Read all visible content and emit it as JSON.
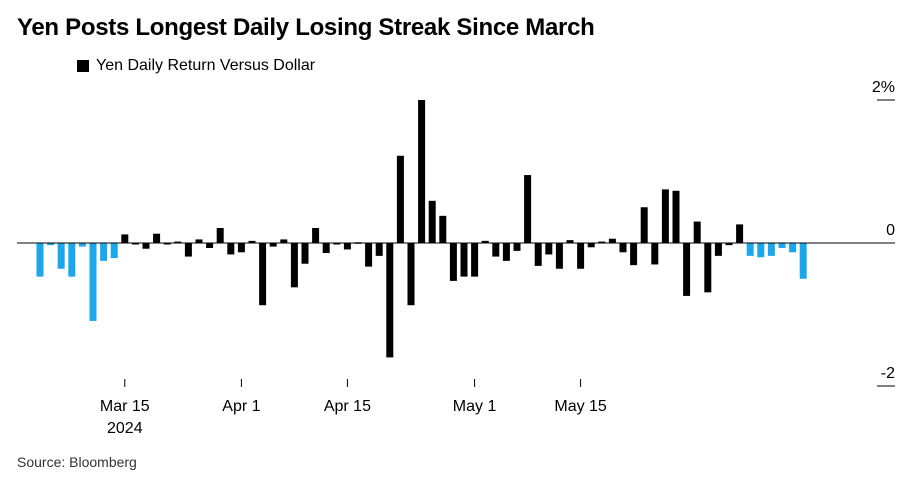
{
  "title": "Yen Posts Longest Daily Losing Streak Since March",
  "source": "Source: Bloomberg",
  "colors": {
    "up": "#000000",
    "down": "#000000",
    "streak": "#1aa7ec",
    "axis": "#000000"
  },
  "chart_data": {
    "type": "bar",
    "title": "Yen Posts Longest Daily Losing Streak Since March",
    "legend": [
      {
        "name": "Yen Daily Return Versus Dollar",
        "color": "#000000"
      }
    ],
    "legend_position": "top-left",
    "ylim": [
      -2,
      2
    ],
    "y_ticks": [
      {
        "value": 2,
        "label": "2%"
      },
      {
        "value": 0,
        "label": "0"
      },
      {
        "value": -2,
        "label": "-2"
      }
    ],
    "x_ticks": [
      {
        "date": "2024-03-15",
        "label": "Mar 15",
        "sublabel": "2024"
      },
      {
        "date": "2024-04-01",
        "label": "Apr 1",
        "sublabel": ""
      },
      {
        "date": "2024-04-15",
        "label": "Apr 15",
        "sublabel": ""
      },
      {
        "date": "2024-05-01",
        "label": "May 1",
        "sublabel": ""
      },
      {
        "date": "2024-05-15",
        "label": "May 15",
        "sublabel": ""
      }
    ],
    "grid": false,
    "series": [
      {
        "name": "Yen Daily Return Versus Dollar",
        "points": [
          {
            "date": "2024-03-05",
            "value": -0.47,
            "streak": true
          },
          {
            "date": "2024-03-06",
            "value": -0.03,
            "streak": true
          },
          {
            "date": "2024-03-07",
            "value": -0.36,
            "streak": true
          },
          {
            "date": "2024-03-08",
            "value": -0.47,
            "streak": true
          },
          {
            "date": "2024-03-11",
            "value": -0.05,
            "streak": true
          },
          {
            "date": "2024-03-12",
            "value": -1.09,
            "streak": true
          },
          {
            "date": "2024-03-13",
            "value": -0.25,
            "streak": true
          },
          {
            "date": "2024-03-14",
            "value": -0.21,
            "streak": true
          },
          {
            "date": "2024-03-15",
            "value": 0.12,
            "streak": false
          },
          {
            "date": "2024-03-18",
            "value": -0.02,
            "streak": false
          },
          {
            "date": "2024-03-19",
            "value": -0.08,
            "streak": false
          },
          {
            "date": "2024-03-20",
            "value": 0.13,
            "streak": false
          },
          {
            "date": "2024-03-21",
            "value": -0.02,
            "streak": false
          },
          {
            "date": "2024-03-22",
            "value": 0.02,
            "streak": false
          },
          {
            "date": "2024-03-25",
            "value": -0.19,
            "streak": false
          },
          {
            "date": "2024-03-26",
            "value": 0.05,
            "streak": false
          },
          {
            "date": "2024-03-27",
            "value": -0.07,
            "streak": false
          },
          {
            "date": "2024-03-28",
            "value": 0.21,
            "streak": false
          },
          {
            "date": "2024-03-29",
            "value": -0.16,
            "streak": false
          },
          {
            "date": "2024-04-01",
            "value": -0.13,
            "streak": false
          },
          {
            "date": "2024-04-02",
            "value": 0.03,
            "streak": false
          },
          {
            "date": "2024-04-03",
            "value": -0.87,
            "streak": false
          },
          {
            "date": "2024-04-04",
            "value": -0.05,
            "streak": false
          },
          {
            "date": "2024-04-05",
            "value": 0.05,
            "streak": false
          },
          {
            "date": "2024-04-08",
            "value": -0.62,
            "streak": false
          },
          {
            "date": "2024-04-09",
            "value": -0.29,
            "streak": false
          },
          {
            "date": "2024-04-10",
            "value": 0.21,
            "streak": false
          },
          {
            "date": "2024-04-11",
            "value": -0.14,
            "streak": false
          },
          {
            "date": "2024-04-12",
            "value": -0.01,
            "streak": false
          },
          {
            "date": "2024-04-15",
            "value": -0.09,
            "streak": false
          },
          {
            "date": "2024-04-16",
            "value": 0.01,
            "streak": false
          },
          {
            "date": "2024-04-17",
            "value": -0.33,
            "streak": false
          },
          {
            "date": "2024-04-18",
            "value": -0.18,
            "streak": false
          },
          {
            "date": "2024-04-19",
            "value": -1.6,
            "streak": false
          },
          {
            "date": "2024-04-22",
            "value": 1.22,
            "streak": false
          },
          {
            "date": "2024-04-23",
            "value": -0.87,
            "streak": false
          },
          {
            "date": "2024-04-24",
            "value": 2.0,
            "streak": false
          },
          {
            "date": "2024-04-25",
            "value": 0.59,
            "streak": false
          },
          {
            "date": "2024-04-26",
            "value": 0.38,
            "streak": false
          },
          {
            "date": "2024-04-29",
            "value": -0.53,
            "streak": false
          },
          {
            "date": "2024-04-30",
            "value": -0.47,
            "streak": false
          },
          {
            "date": "2024-05-01",
            "value": -0.47,
            "streak": false
          },
          {
            "date": "2024-05-02",
            "value": 0.03,
            "streak": false
          },
          {
            "date": "2024-05-03",
            "value": -0.19,
            "streak": false
          },
          {
            "date": "2024-05-06",
            "value": -0.25,
            "streak": false
          },
          {
            "date": "2024-05-07",
            "value": -0.11,
            "streak": false
          },
          {
            "date": "2024-05-08",
            "value": 0.95,
            "streak": false
          },
          {
            "date": "2024-05-09",
            "value": -0.32,
            "streak": false
          },
          {
            "date": "2024-05-10",
            "value": -0.16,
            "streak": false
          },
          {
            "date": "2024-05-13",
            "value": -0.36,
            "streak": false
          },
          {
            "date": "2024-05-14",
            "value": 0.04,
            "streak": false
          },
          {
            "date": "2024-05-15",
            "value": -0.36,
            "streak": false
          },
          {
            "date": "2024-05-16",
            "value": -0.06,
            "streak": false
          },
          {
            "date": "2024-05-17",
            "value": 0.02,
            "streak": false
          },
          {
            "date": "2024-05-20",
            "value": 0.06,
            "streak": false
          },
          {
            "date": "2024-05-21",
            "value": -0.13,
            "streak": false
          },
          {
            "date": "2024-05-22",
            "value": -0.31,
            "streak": false
          },
          {
            "date": "2024-05-23",
            "value": 0.5,
            "streak": false
          },
          {
            "date": "2024-05-24",
            "value": -0.3,
            "streak": false
          },
          {
            "date": "2024-05-27",
            "value": 0.75,
            "streak": false
          },
          {
            "date": "2024-05-28",
            "value": 0.73,
            "streak": false
          },
          {
            "date": "2024-05-29",
            "value": -0.74,
            "streak": false
          },
          {
            "date": "2024-05-30",
            "value": 0.3,
            "streak": false
          },
          {
            "date": "2024-05-31",
            "value": -0.69,
            "streak": false
          },
          {
            "date": "2024-06-03",
            "value": -0.18,
            "streak": false
          },
          {
            "date": "2024-06-04",
            "value": -0.03,
            "streak": false
          },
          {
            "date": "2024-06-05",
            "value": 0.26,
            "streak": false
          },
          {
            "date": "2024-06-06",
            "value": -0.18,
            "streak": true
          },
          {
            "date": "2024-06-07",
            "value": -0.2,
            "streak": true
          },
          {
            "date": "2024-06-10",
            "value": -0.18,
            "streak": true
          },
          {
            "date": "2024-06-11",
            "value": -0.07,
            "streak": true
          },
          {
            "date": "2024-06-12",
            "value": -0.13,
            "streak": true
          },
          {
            "date": "2024-06-13",
            "value": -0.5,
            "streak": true
          }
        ]
      }
    ]
  }
}
